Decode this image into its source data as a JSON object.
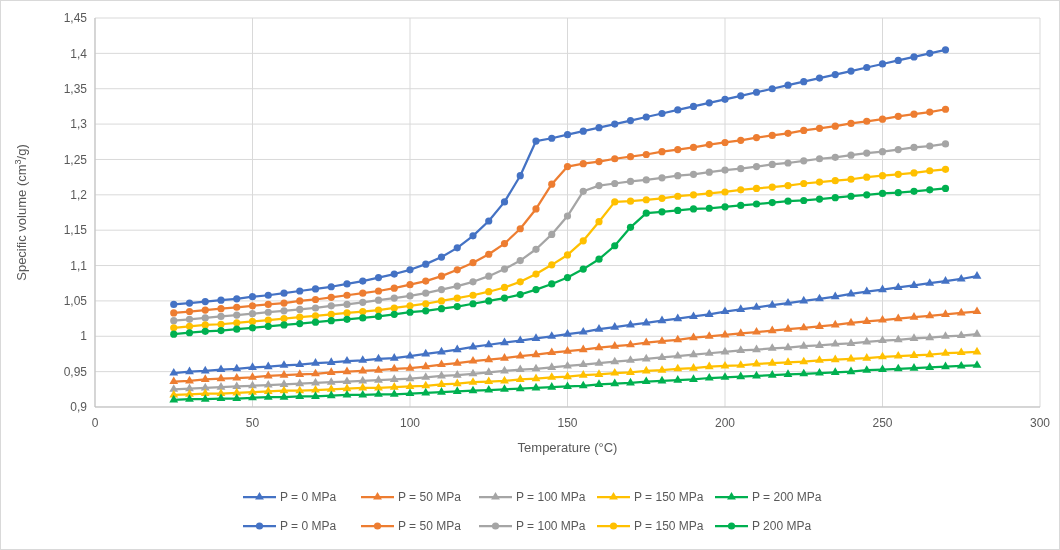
{
  "chart_data": {
    "type": "line",
    "xlabel": "Temperature (°C)",
    "ylabel": "Specific volume (cm$^{3}$/g)",
    "xlim": [
      0,
      300
    ],
    "xticks": [
      0,
      50,
      100,
      150,
      200,
      250,
      300
    ],
    "ylim": [
      0.9,
      1.45
    ],
    "yticks": [
      {
        "value": 0.9,
        "label": "0,9"
      },
      {
        "value": 0.95,
        "label": "0,95"
      },
      1,
      {
        "value": 1.05,
        "label": "1,05"
      },
      {
        "value": 1.1,
        "label": "1,1"
      },
      {
        "value": 1.15,
        "label": "1,15"
      },
      {
        "value": 1.2,
        "label": "1,2"
      },
      {
        "value": 1.25,
        "label": "1,25"
      },
      {
        "value": 1.3,
        "label": "1,3"
      },
      {
        "value": 1.35,
        "label": "1,35"
      },
      {
        "value": 1.4,
        "label": "1,4"
      },
      {
        "value": 1.45,
        "label": "1,45"
      }
    ],
    "grid": true,
    "legend": "bottom",
    "line_style": "solid",
    "series": [
      {
        "name": "P = 0 MPa",
        "color": "#4472c4",
        "marker": "triangle",
        "x": [
          25,
          30,
          35,
          40,
          45,
          50,
          55,
          60,
          65,
          70,
          75,
          80,
          85,
          90,
          95,
          100,
          105,
          110,
          115,
          120,
          125,
          130,
          135,
          140,
          145,
          150,
          155,
          160,
          165,
          170,
          175,
          180,
          185,
          190,
          195,
          200,
          205,
          210,
          215,
          220,
          225,
          230,
          235,
          240,
          245,
          250,
          255,
          260,
          265,
          270,
          275,
          280
        ],
        "values": [
          0.948,
          0.95,
          0.951,
          0.953,
          0.954,
          0.956,
          0.957,
          0.959,
          0.96,
          0.962,
          0.963,
          0.965,
          0.966,
          0.968,
          0.969,
          0.972,
          0.975,
          0.978,
          0.981,
          0.985,
          0.988,
          0.991,
          0.994,
          0.997,
          1.0,
          1.003,
          1.006,
          1.01,
          1.013,
          1.016,
          1.019,
          1.022,
          1.025,
          1.028,
          1.031,
          1.035,
          1.038,
          1.041,
          1.044,
          1.047,
          1.05,
          1.053,
          1.056,
          1.06,
          1.063,
          1.066,
          1.069,
          1.072,
          1.075,
          1.078,
          1.081,
          1.085
        ]
      },
      {
        "name": "P = 50 MPa",
        "color": "#ed7d31",
        "marker": "triangle",
        "x": [
          25,
          30,
          35,
          40,
          45,
          50,
          55,
          60,
          65,
          70,
          75,
          80,
          85,
          90,
          95,
          100,
          105,
          110,
          115,
          120,
          125,
          130,
          135,
          140,
          145,
          150,
          155,
          160,
          165,
          170,
          175,
          180,
          185,
          190,
          195,
          200,
          205,
          210,
          215,
          220,
          225,
          230,
          235,
          240,
          245,
          250,
          255,
          260,
          265,
          270,
          275,
          280
        ],
        "values": [
          0.936,
          0.937,
          0.939,
          0.94,
          0.941,
          0.942,
          0.944,
          0.945,
          0.946,
          0.947,
          0.949,
          0.95,
          0.951,
          0.952,
          0.954,
          0.955,
          0.957,
          0.96,
          0.962,
          0.965,
          0.967,
          0.969,
          0.972,
          0.974,
          0.977,
          0.979,
          0.981,
          0.984,
          0.986,
          0.988,
          0.991,
          0.993,
          0.995,
          0.998,
          1.0,
          1.002,
          1.004,
          1.006,
          1.008,
          1.01,
          1.012,
          1.014,
          1.016,
          1.019,
          1.021,
          1.023,
          1.025,
          1.027,
          1.029,
          1.031,
          1.033,
          1.035
        ]
      },
      {
        "name": "P = 100 MPa",
        "color": "#a5a5a5",
        "marker": "triangle",
        "x": [
          25,
          30,
          35,
          40,
          45,
          50,
          55,
          60,
          65,
          70,
          75,
          80,
          85,
          90,
          95,
          100,
          105,
          110,
          115,
          120,
          125,
          130,
          135,
          140,
          145,
          150,
          155,
          160,
          165,
          170,
          175,
          180,
          185,
          190,
          195,
          200,
          205,
          210,
          215,
          220,
          225,
          230,
          235,
          240,
          245,
          250,
          255,
          260,
          265,
          270,
          275,
          280
        ],
        "values": [
          0.925,
          0.926,
          0.927,
          0.928,
          0.929,
          0.93,
          0.931,
          0.932,
          0.933,
          0.934,
          0.935,
          0.936,
          0.937,
          0.938,
          0.939,
          0.94,
          0.942,
          0.944,
          0.945,
          0.947,
          0.949,
          0.951,
          0.953,
          0.954,
          0.956,
          0.958,
          0.96,
          0.962,
          0.964,
          0.966,
          0.968,
          0.97,
          0.972,
          0.974,
          0.976,
          0.978,
          0.98,
          0.981,
          0.983,
          0.984,
          0.986,
          0.987,
          0.989,
          0.99,
          0.992,
          0.994,
          0.995,
          0.997,
          0.998,
          1.0,
          1.001,
          1.003
        ]
      },
      {
        "name": "P = 150 MPa",
        "color": "#ffc000",
        "marker": "triangle",
        "x": [
          25,
          30,
          35,
          40,
          45,
          50,
          55,
          60,
          65,
          70,
          75,
          80,
          85,
          90,
          95,
          100,
          105,
          110,
          115,
          120,
          125,
          130,
          135,
          140,
          145,
          150,
          155,
          160,
          165,
          170,
          175,
          180,
          185,
          190,
          195,
          200,
          205,
          210,
          215,
          220,
          225,
          230,
          235,
          240,
          245,
          250,
          255,
          260,
          265,
          270,
          275,
          280
        ],
        "values": [
          0.917,
          0.918,
          0.919,
          0.919,
          0.92,
          0.921,
          0.922,
          0.923,
          0.923,
          0.924,
          0.925,
          0.926,
          0.927,
          0.927,
          0.928,
          0.929,
          0.93,
          0.932,
          0.933,
          0.935,
          0.936,
          0.937,
          0.939,
          0.94,
          0.942,
          0.943,
          0.945,
          0.946,
          0.948,
          0.949,
          0.951,
          0.952,
          0.954,
          0.955,
          0.957,
          0.958,
          0.959,
          0.961,
          0.962,
          0.963,
          0.964,
          0.966,
          0.967,
          0.968,
          0.969,
          0.971,
          0.972,
          0.973,
          0.974,
          0.976,
          0.977,
          0.978
        ]
      },
      {
        "name": "P = 200 MPa",
        "color": "#00b050",
        "marker": "triangle",
        "x": [
          25,
          30,
          35,
          40,
          45,
          50,
          55,
          60,
          65,
          70,
          75,
          80,
          85,
          90,
          95,
          100,
          105,
          110,
          115,
          120,
          125,
          130,
          135,
          140,
          145,
          150,
          155,
          160,
          165,
          170,
          175,
          180,
          185,
          190,
          195,
          200,
          205,
          210,
          215,
          220,
          225,
          230,
          235,
          240,
          245,
          250,
          255,
          260,
          265,
          270,
          275,
          280
        ],
        "values": [
          0.91,
          0.911,
          0.911,
          0.912,
          0.912,
          0.913,
          0.914,
          0.914,
          0.915,
          0.915,
          0.916,
          0.917,
          0.917,
          0.918,
          0.918,
          0.919,
          0.92,
          0.921,
          0.922,
          0.923,
          0.924,
          0.925,
          0.926,
          0.927,
          0.928,
          0.929,
          0.93,
          0.932,
          0.933,
          0.934,
          0.936,
          0.937,
          0.938,
          0.939,
          0.941,
          0.942,
          0.943,
          0.944,
          0.945,
          0.946,
          0.947,
          0.948,
          0.949,
          0.95,
          0.952,
          0.953,
          0.954,
          0.955,
          0.956,
          0.957,
          0.958,
          0.959
        ]
      },
      {
        "name": "P = 0 MPa",
        "color": "#4472c4",
        "marker": "circle",
        "x": [
          25,
          30,
          35,
          40,
          45,
          50,
          55,
          60,
          65,
          70,
          75,
          80,
          85,
          90,
          95,
          100,
          105,
          110,
          115,
          120,
          125,
          130,
          135,
          140,
          145,
          150,
          155,
          160,
          165,
          170,
          175,
          180,
          185,
          190,
          195,
          200,
          205,
          210,
          215,
          220,
          225,
          230,
          235,
          240,
          245,
          250,
          255,
          260,
          265,
          270
        ],
        "values": [
          1.045,
          1.047,
          1.049,
          1.051,
          1.053,
          1.056,
          1.058,
          1.061,
          1.064,
          1.067,
          1.07,
          1.074,
          1.078,
          1.083,
          1.088,
          1.094,
          1.102,
          1.112,
          1.125,
          1.142,
          1.163,
          1.19,
          1.227,
          1.276,
          1.28,
          1.285,
          1.29,
          1.295,
          1.3,
          1.305,
          1.31,
          1.315,
          1.32,
          1.325,
          1.33,
          1.335,
          1.34,
          1.345,
          1.35,
          1.355,
          1.36,
          1.365,
          1.37,
          1.375,
          1.38,
          1.385,
          1.39,
          1.395,
          1.4,
          1.405
        ]
      },
      {
        "name": "P = 50 MPa",
        "color": "#ed7d31",
        "marker": "circle",
        "x": [
          25,
          30,
          35,
          40,
          45,
          50,
          55,
          60,
          65,
          70,
          75,
          80,
          85,
          90,
          95,
          100,
          105,
          110,
          115,
          120,
          125,
          130,
          135,
          140,
          145,
          150,
          155,
          160,
          165,
          170,
          175,
          180,
          185,
          190,
          195,
          200,
          205,
          210,
          215,
          220,
          225,
          230,
          235,
          240,
          245,
          250,
          255,
          260,
          265,
          270
        ],
        "values": [
          1.033,
          1.035,
          1.037,
          1.039,
          1.041,
          1.043,
          1.045,
          1.047,
          1.05,
          1.052,
          1.055,
          1.058,
          1.061,
          1.064,
          1.068,
          1.073,
          1.078,
          1.085,
          1.094,
          1.104,
          1.116,
          1.131,
          1.152,
          1.18,
          1.215,
          1.24,
          1.244,
          1.247,
          1.251,
          1.254,
          1.257,
          1.261,
          1.264,
          1.267,
          1.271,
          1.274,
          1.277,
          1.281,
          1.284,
          1.287,
          1.291,
          1.294,
          1.297,
          1.301,
          1.304,
          1.307,
          1.311,
          1.314,
          1.317,
          1.321
        ]
      },
      {
        "name": "P = 100 MPa",
        "color": "#a5a5a5",
        "marker": "circle",
        "x": [
          25,
          30,
          35,
          40,
          45,
          50,
          55,
          60,
          65,
          70,
          75,
          80,
          85,
          90,
          95,
          100,
          105,
          110,
          115,
          120,
          125,
          130,
          135,
          140,
          145,
          150,
          155,
          160,
          165,
          170,
          175,
          180,
          185,
          190,
          195,
          200,
          205,
          210,
          215,
          220,
          225,
          230,
          235,
          240,
          245,
          250,
          255,
          260,
          265,
          270
        ],
        "values": [
          1.022,
          1.024,
          1.026,
          1.028,
          1.03,
          1.032,
          1.034,
          1.036,
          1.038,
          1.04,
          1.043,
          1.045,
          1.048,
          1.051,
          1.054,
          1.057,
          1.061,
          1.066,
          1.071,
          1.077,
          1.085,
          1.095,
          1.107,
          1.123,
          1.144,
          1.17,
          1.205,
          1.213,
          1.216,
          1.219,
          1.221,
          1.224,
          1.227,
          1.229,
          1.232,
          1.235,
          1.237,
          1.24,
          1.243,
          1.245,
          1.248,
          1.251,
          1.253,
          1.256,
          1.259,
          1.261,
          1.264,
          1.267,
          1.269,
          1.272
        ]
      },
      {
        "name": "P = 150 MPa",
        "color": "#ffc000",
        "marker": "circle",
        "x": [
          25,
          30,
          35,
          40,
          45,
          50,
          55,
          60,
          65,
          70,
          75,
          80,
          85,
          90,
          95,
          100,
          105,
          110,
          115,
          120,
          125,
          130,
          135,
          140,
          145,
          150,
          155,
          160,
          165,
          170,
          175,
          180,
          185,
          190,
          195,
          200,
          205,
          210,
          215,
          220,
          225,
          230,
          235,
          240,
          245,
          250,
          255,
          260,
          265,
          270
        ],
        "values": [
          1.012,
          1.014,
          1.016,
          1.017,
          1.019,
          1.021,
          1.023,
          1.025,
          1.027,
          1.029,
          1.031,
          1.033,
          1.035,
          1.037,
          1.04,
          1.043,
          1.046,
          1.05,
          1.054,
          1.058,
          1.063,
          1.069,
          1.077,
          1.088,
          1.101,
          1.115,
          1.135,
          1.162,
          1.19,
          1.191,
          1.193,
          1.195,
          1.198,
          1.2,
          1.202,
          1.204,
          1.207,
          1.209,
          1.211,
          1.213,
          1.216,
          1.218,
          1.22,
          1.222,
          1.225,
          1.227,
          1.229,
          1.231,
          1.234,
          1.236
        ]
      },
      {
        "name": "P 200 MPa",
        "color": "#00b050",
        "marker": "circle",
        "x": [
          25,
          30,
          35,
          40,
          45,
          50,
          55,
          60,
          65,
          70,
          75,
          80,
          85,
          90,
          95,
          100,
          105,
          110,
          115,
          120,
          125,
          130,
          135,
          140,
          145,
          150,
          155,
          160,
          165,
          170,
          175,
          180,
          185,
          190,
          195,
          200,
          205,
          210,
          215,
          220,
          225,
          230,
          235,
          240,
          245,
          250,
          255,
          260,
          265,
          270
        ],
        "values": [
          1.003,
          1.005,
          1.007,
          1.008,
          1.01,
          1.012,
          1.014,
          1.016,
          1.018,
          1.02,
          1.022,
          1.024,
          1.026,
          1.028,
          1.031,
          1.034,
          1.036,
          1.039,
          1.042,
          1.046,
          1.05,
          1.054,
          1.059,
          1.066,
          1.074,
          1.083,
          1.095,
          1.109,
          1.128,
          1.154,
          1.174,
          1.176,
          1.178,
          1.18,
          1.181,
          1.183,
          1.185,
          1.187,
          1.189,
          1.191,
          1.192,
          1.194,
          1.196,
          1.198,
          1.2,
          1.202,
          1.203,
          1.205,
          1.207,
          1.209
        ]
      }
    ]
  }
}
